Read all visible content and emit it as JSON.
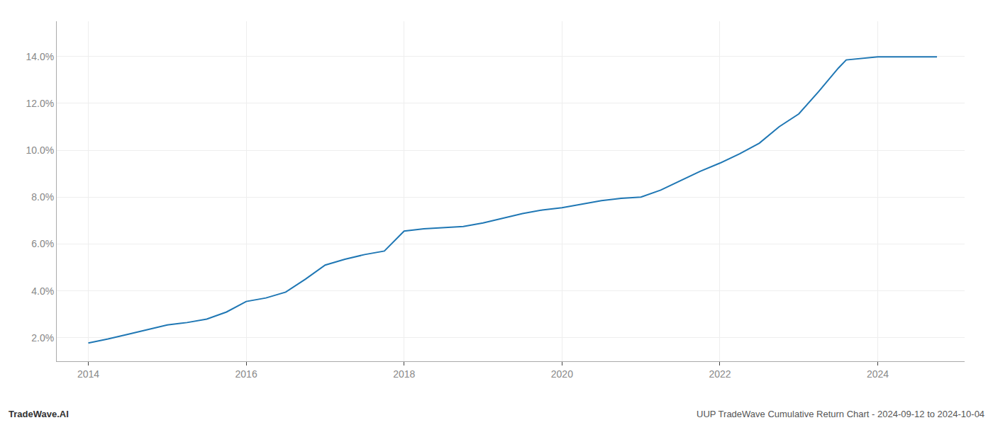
{
  "chart_data": {
    "type": "line",
    "annotations": [
      "TradeWave.AI",
      "UUP TradeWave Cumulative Return Chart - 2024-09-12 to 2024-10-04"
    ],
    "x": [
      2014.0,
      2014.25,
      2014.5,
      2014.75,
      2015.0,
      2015.25,
      2015.5,
      2015.75,
      2016.0,
      2016.25,
      2016.5,
      2016.75,
      2017.0,
      2017.25,
      2017.5,
      2017.75,
      2018.0,
      2018.25,
      2018.5,
      2018.75,
      2019.0,
      2019.25,
      2019.5,
      2019.75,
      2020.0,
      2020.25,
      2020.5,
      2020.75,
      2021.0,
      2021.25,
      2021.5,
      2021.75,
      2022.0,
      2022.25,
      2022.5,
      2022.75,
      2023.0,
      2023.25,
      2023.5,
      2023.6,
      2024.0,
      2024.75
    ],
    "values": [
      1.78,
      1.95,
      2.15,
      2.35,
      2.55,
      2.65,
      2.8,
      3.1,
      3.55,
      3.7,
      3.95,
      4.5,
      5.1,
      5.35,
      5.55,
      5.7,
      6.55,
      6.65,
      6.7,
      6.75,
      6.9,
      7.1,
      7.3,
      7.45,
      7.55,
      7.7,
      7.85,
      7.95,
      8.0,
      8.3,
      8.7,
      9.1,
      9.45,
      9.85,
      10.3,
      11.0,
      11.55,
      12.5,
      13.5,
      13.85,
      13.98,
      13.98
    ],
    "color": "#1f77b4",
    "xlim": [
      2013.6,
      2025.1
    ],
    "xticks": [
      2014,
      2016,
      2018,
      2020,
      2022,
      2024
    ],
    "ylim": [
      1.0,
      15.5
    ],
    "yticks": [
      {
        "value": 2.0,
        "label": "2.0%"
      },
      {
        "value": 4.0,
        "label": "4.0%"
      },
      {
        "value": 6.0,
        "label": "6.0%"
      },
      {
        "value": 8.0,
        "label": "8.0%"
      },
      {
        "value": 10.0,
        "label": "10.0%"
      },
      {
        "value": 12.0,
        "label": "12.0%"
      },
      {
        "value": 14.0,
        "label": "14.0%"
      }
    ],
    "grid": true
  }
}
